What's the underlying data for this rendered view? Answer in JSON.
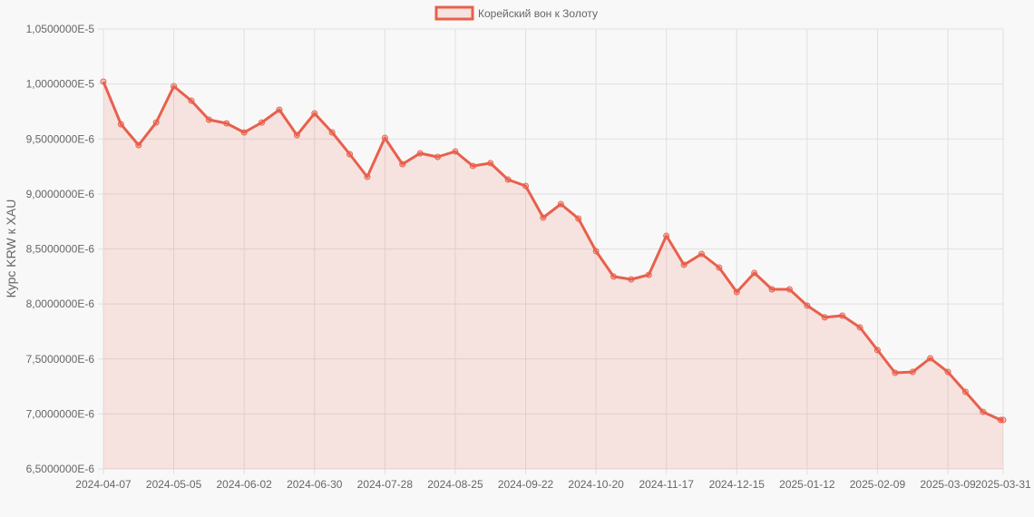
{
  "chart_data": {
    "type": "line",
    "title": "",
    "xlabel": "",
    "ylabel": "Курс KRW к XAU",
    "legend": {
      "position": "top",
      "entries": [
        "Корейский вон к Золоту"
      ]
    },
    "grid": true,
    "ylim": [
      6.5e-06,
      1.05e-05
    ],
    "y_ticks": [
      "1,0500000E-5",
      "1,0000000E-5",
      "9,5000000E-6",
      "9,0000000E-6",
      "8,5000000E-6",
      "8,0000000E-6",
      "7,5000000E-6",
      "7,0000000E-6",
      "6,5000000E-6"
    ],
    "y_tick_values": [
      1.05e-05,
      1e-05,
      9.5e-06,
      9e-06,
      8.5e-06,
      8e-06,
      7.5e-06,
      7e-06,
      6.5e-06
    ],
    "x_ticks": [
      "2024-04-07",
      "2024-05-05",
      "2024-06-02",
      "2024-06-30",
      "2024-07-28",
      "2024-08-25",
      "2024-09-22",
      "2024-10-20",
      "2024-11-17",
      "2024-12-15",
      "2025-01-12",
      "2025-02-09",
      "2025-03-09",
      "2025-03-31"
    ],
    "x": [
      "2024-04-07",
      "2024-04-14",
      "2024-04-21",
      "2024-04-28",
      "2024-05-05",
      "2024-05-12",
      "2024-05-19",
      "2024-05-26",
      "2024-06-02",
      "2024-06-09",
      "2024-06-16",
      "2024-06-23",
      "2024-06-30",
      "2024-07-07",
      "2024-07-14",
      "2024-07-21",
      "2024-07-28",
      "2024-08-04",
      "2024-08-11",
      "2024-08-18",
      "2024-08-25",
      "2024-09-01",
      "2024-09-08",
      "2024-09-15",
      "2024-09-22",
      "2024-09-29",
      "2024-10-06",
      "2024-10-13",
      "2024-10-20",
      "2024-10-27",
      "2024-11-03",
      "2024-11-10",
      "2024-11-17",
      "2024-11-24",
      "2024-12-01",
      "2024-12-08",
      "2024-12-15",
      "2024-12-22",
      "2024-12-29",
      "2025-01-05",
      "2025-01-12",
      "2025-01-19",
      "2025-01-26",
      "2025-02-02",
      "2025-02-09",
      "2025-02-16",
      "2025-02-23",
      "2025-03-02",
      "2025-03-09",
      "2025-03-16",
      "2025-03-23",
      "2025-03-30",
      "2025-03-31"
    ],
    "series": [
      {
        "name": "Корейский вон к Золоту",
        "color": "#e8604c",
        "fill": "rgba(232,96,76,0.14)",
        "values": [
          1.0022e-05,
          9.634e-06,
          9.444e-06,
          9.65e-06,
          9.98e-06,
          9.848e-06,
          9.675e-06,
          9.642e-06,
          9.56e-06,
          9.65e-06,
          9.766e-06,
          9.535e-06,
          9.733e-06,
          9.56e-06,
          9.362e-06,
          9.156e-06,
          9.51e-06,
          9.271e-06,
          9.37e-06,
          9.337e-06,
          9.387e-06,
          9.255e-06,
          9.28e-06,
          9.131e-06,
          9.073e-06,
          8.785e-06,
          8.908e-06,
          8.776e-06,
          8.48e-06,
          8.249e-06,
          8.224e-06,
          8.265e-06,
          8.62e-06,
          8.356e-06,
          8.455e-06,
          8.331e-06,
          8.108e-06,
          8.282e-06,
          8.133e-06,
          8.133e-06,
          7.985e-06,
          7.878e-06,
          7.894e-06,
          7.787e-06,
          7.58e-06,
          7.374e-06,
          7.382e-06,
          7.506e-06,
          7.382e-06,
          7.201e-06,
          7.019e-06,
          6.945e-06,
          6.945e-06
        ]
      }
    ]
  },
  "legend": {
    "label": "Корейский вон к Золоту"
  },
  "axis": {
    "ylabel": "Курс KRW к XAU"
  }
}
